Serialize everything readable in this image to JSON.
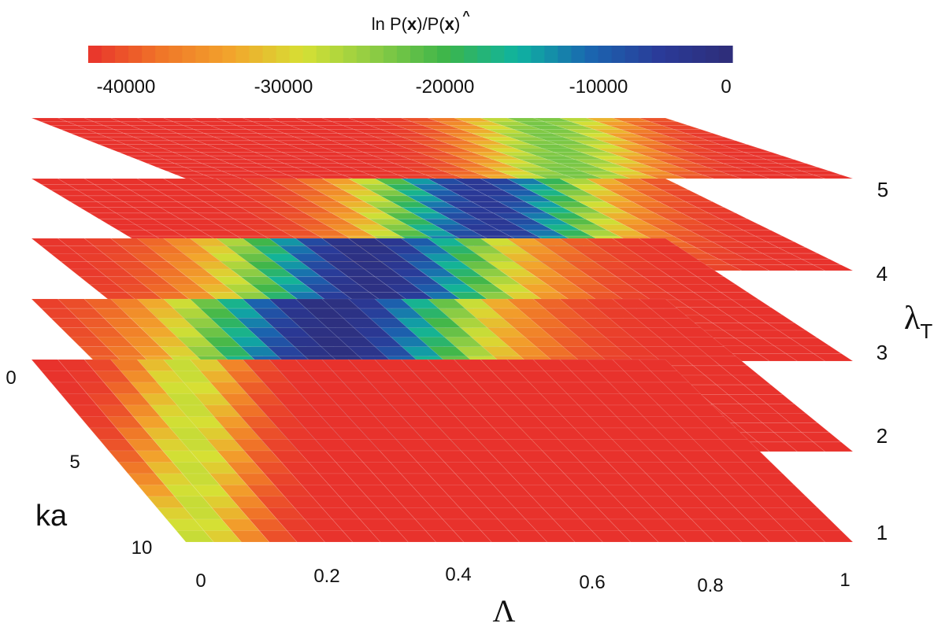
{
  "chart_data": {
    "type": "heatmap",
    "title": "",
    "colorbar": {
      "title_prefix": "ln P(",
      "title_x": "x",
      "title_mid": ")/P(",
      "title_xhat": "x",
      "title_hat": "^",
      "title_suffix": ")",
      "ticks": [
        {
          "value": -40000,
          "label": "-40000"
        },
        {
          "value": -30000,
          "label": "-30000"
        },
        {
          "value": -20000,
          "label": "-20000"
        },
        {
          "value": -10000,
          "label": "-10000"
        },
        {
          "value": 0,
          "label": "0"
        }
      ],
      "range": [
        -42000,
        0
      ],
      "colors": [
        "#e8322c",
        "#f07428",
        "#f2a52c",
        "#d6e034",
        "#8ccc44",
        "#3cb54a",
        "#0fb3a0",
        "#1a66b0",
        "#2a3a98",
        "#2e2d78"
      ]
    },
    "x_axis": {
      "label": "Λ",
      "range": [
        0,
        1
      ],
      "ticks": [
        {
          "value": 0,
          "label": "0"
        },
        {
          "value": 0.2,
          "label": "0.2"
        },
        {
          "value": 0.4,
          "label": "0.4"
        },
        {
          "value": 0.6,
          "label": "0.6"
        },
        {
          "value": 0.8,
          "label": "0.8"
        },
        {
          "value": 1,
          "label": "1"
        }
      ]
    },
    "y_axis": {
      "label": "ka",
      "range": [
        0,
        10
      ],
      "ticks": [
        {
          "value": 0,
          "label": "0"
        },
        {
          "value": 5,
          "label": "5"
        },
        {
          "value": 10,
          "label": "10"
        }
      ]
    },
    "z_axis": {
      "label_main": "λ",
      "label_sub": "T",
      "ticks": [
        {
          "value": 1,
          "label": "1"
        },
        {
          "value": 2,
          "label": "2"
        },
        {
          "value": 3,
          "label": "3"
        },
        {
          "value": 4,
          "label": "4"
        },
        {
          "value": 5,
          "label": "5"
        }
      ]
    },
    "layers": [
      {
        "lambda_T": 1,
        "peak_lambda": 0.02,
        "peak_ka": 10,
        "width": 0.12,
        "peak_value": -27000
      },
      {
        "lambda_T": 2,
        "peak_lambda": 0.4,
        "peak_ka": 3,
        "width": 0.32,
        "peak_value": -1000
      },
      {
        "lambda_T": 3,
        "peak_lambda": 0.52,
        "peak_ka": 0,
        "width": 0.3,
        "peak_value": -1500
      },
      {
        "lambda_T": 4,
        "peak_lambda": 0.7,
        "peak_ka": 0,
        "width": 0.25,
        "peak_value": -4000
      },
      {
        "lambda_T": 5,
        "peak_lambda": 0.8,
        "peak_ka": 0,
        "width": 0.18,
        "peak_value": -22000
      }
    ]
  }
}
